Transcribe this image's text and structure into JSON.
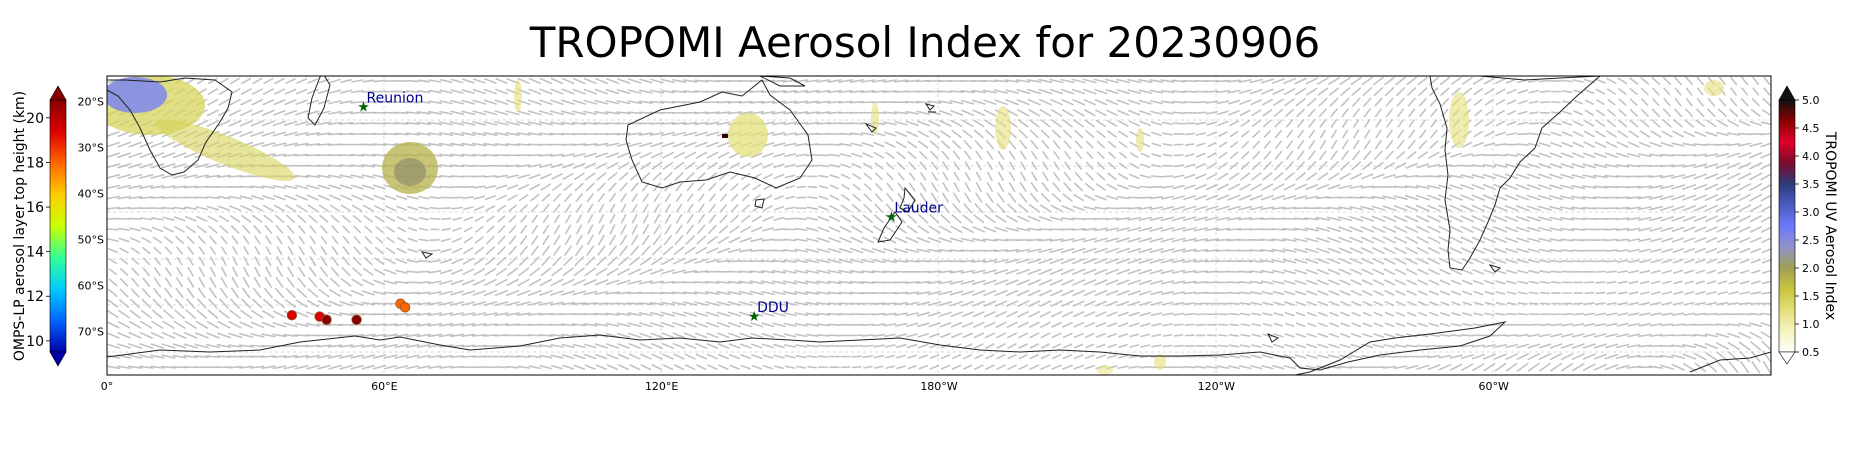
{
  "title": "TROPOMI Aerosol Index for 20230906",
  "map": {
    "lon_labels": [
      "0°",
      "60°E",
      "120°E",
      "180°W",
      "120°W",
      "60°W"
    ],
    "lat_labels": [
      "20°S",
      "30°S",
      "40°S",
      "50°S",
      "60°S",
      "70°S"
    ],
    "stations": [
      {
        "name": "Reunion",
        "lon": 55.5,
        "lat": -21.1
      },
      {
        "name": "Lauder",
        "lon": 169.7,
        "lat": -45.0
      },
      {
        "name": "DDU",
        "lon": 140.0,
        "lat": -66.7
      }
    ],
    "omps_points": [
      {
        "lon": 40.0,
        "lat": -66.5,
        "height": 19.0
      },
      {
        "lon": 46.0,
        "lat": -66.8,
        "height": 19.0
      },
      {
        "lon": 47.5,
        "lat": -67.5,
        "height": 19.5
      },
      {
        "lon": 54.0,
        "lat": -67.5,
        "height": 19.5
      },
      {
        "lon": 63.5,
        "lat": -64.0,
        "height": 18.0
      },
      {
        "lon": 64.5,
        "lat": -64.8,
        "height": 18.0
      }
    ]
  },
  "colorbar_left": {
    "label": "OMPS-LP aerosol layer top height (km)",
    "ticks": [
      "10",
      "12",
      "14",
      "16",
      "18",
      "20"
    ],
    "colors": [
      "#0000aa",
      "#0066ff",
      "#00ccff",
      "#33ff99",
      "#ccff00",
      "#ffcc00",
      "#ff6600",
      "#dd0000",
      "#880000"
    ]
  },
  "colorbar_right": {
    "label": "TROPOMI UV Aerosol Index",
    "ticks": [
      "0.5",
      "1.0",
      "1.5",
      "2.0",
      "2.5",
      "3.0",
      "3.5",
      "4.0",
      "4.5",
      "5.0"
    ],
    "colors": [
      "#ffffff",
      "#f5f3c0",
      "#e3e07a",
      "#c8c43c",
      "#9f9f55",
      "#8f93c8",
      "#6d78ff",
      "#4b5cc0",
      "#2e3b7c",
      "#7a0b2a",
      "#e0002a",
      "#8b0000",
      "#111111"
    ]
  }
}
